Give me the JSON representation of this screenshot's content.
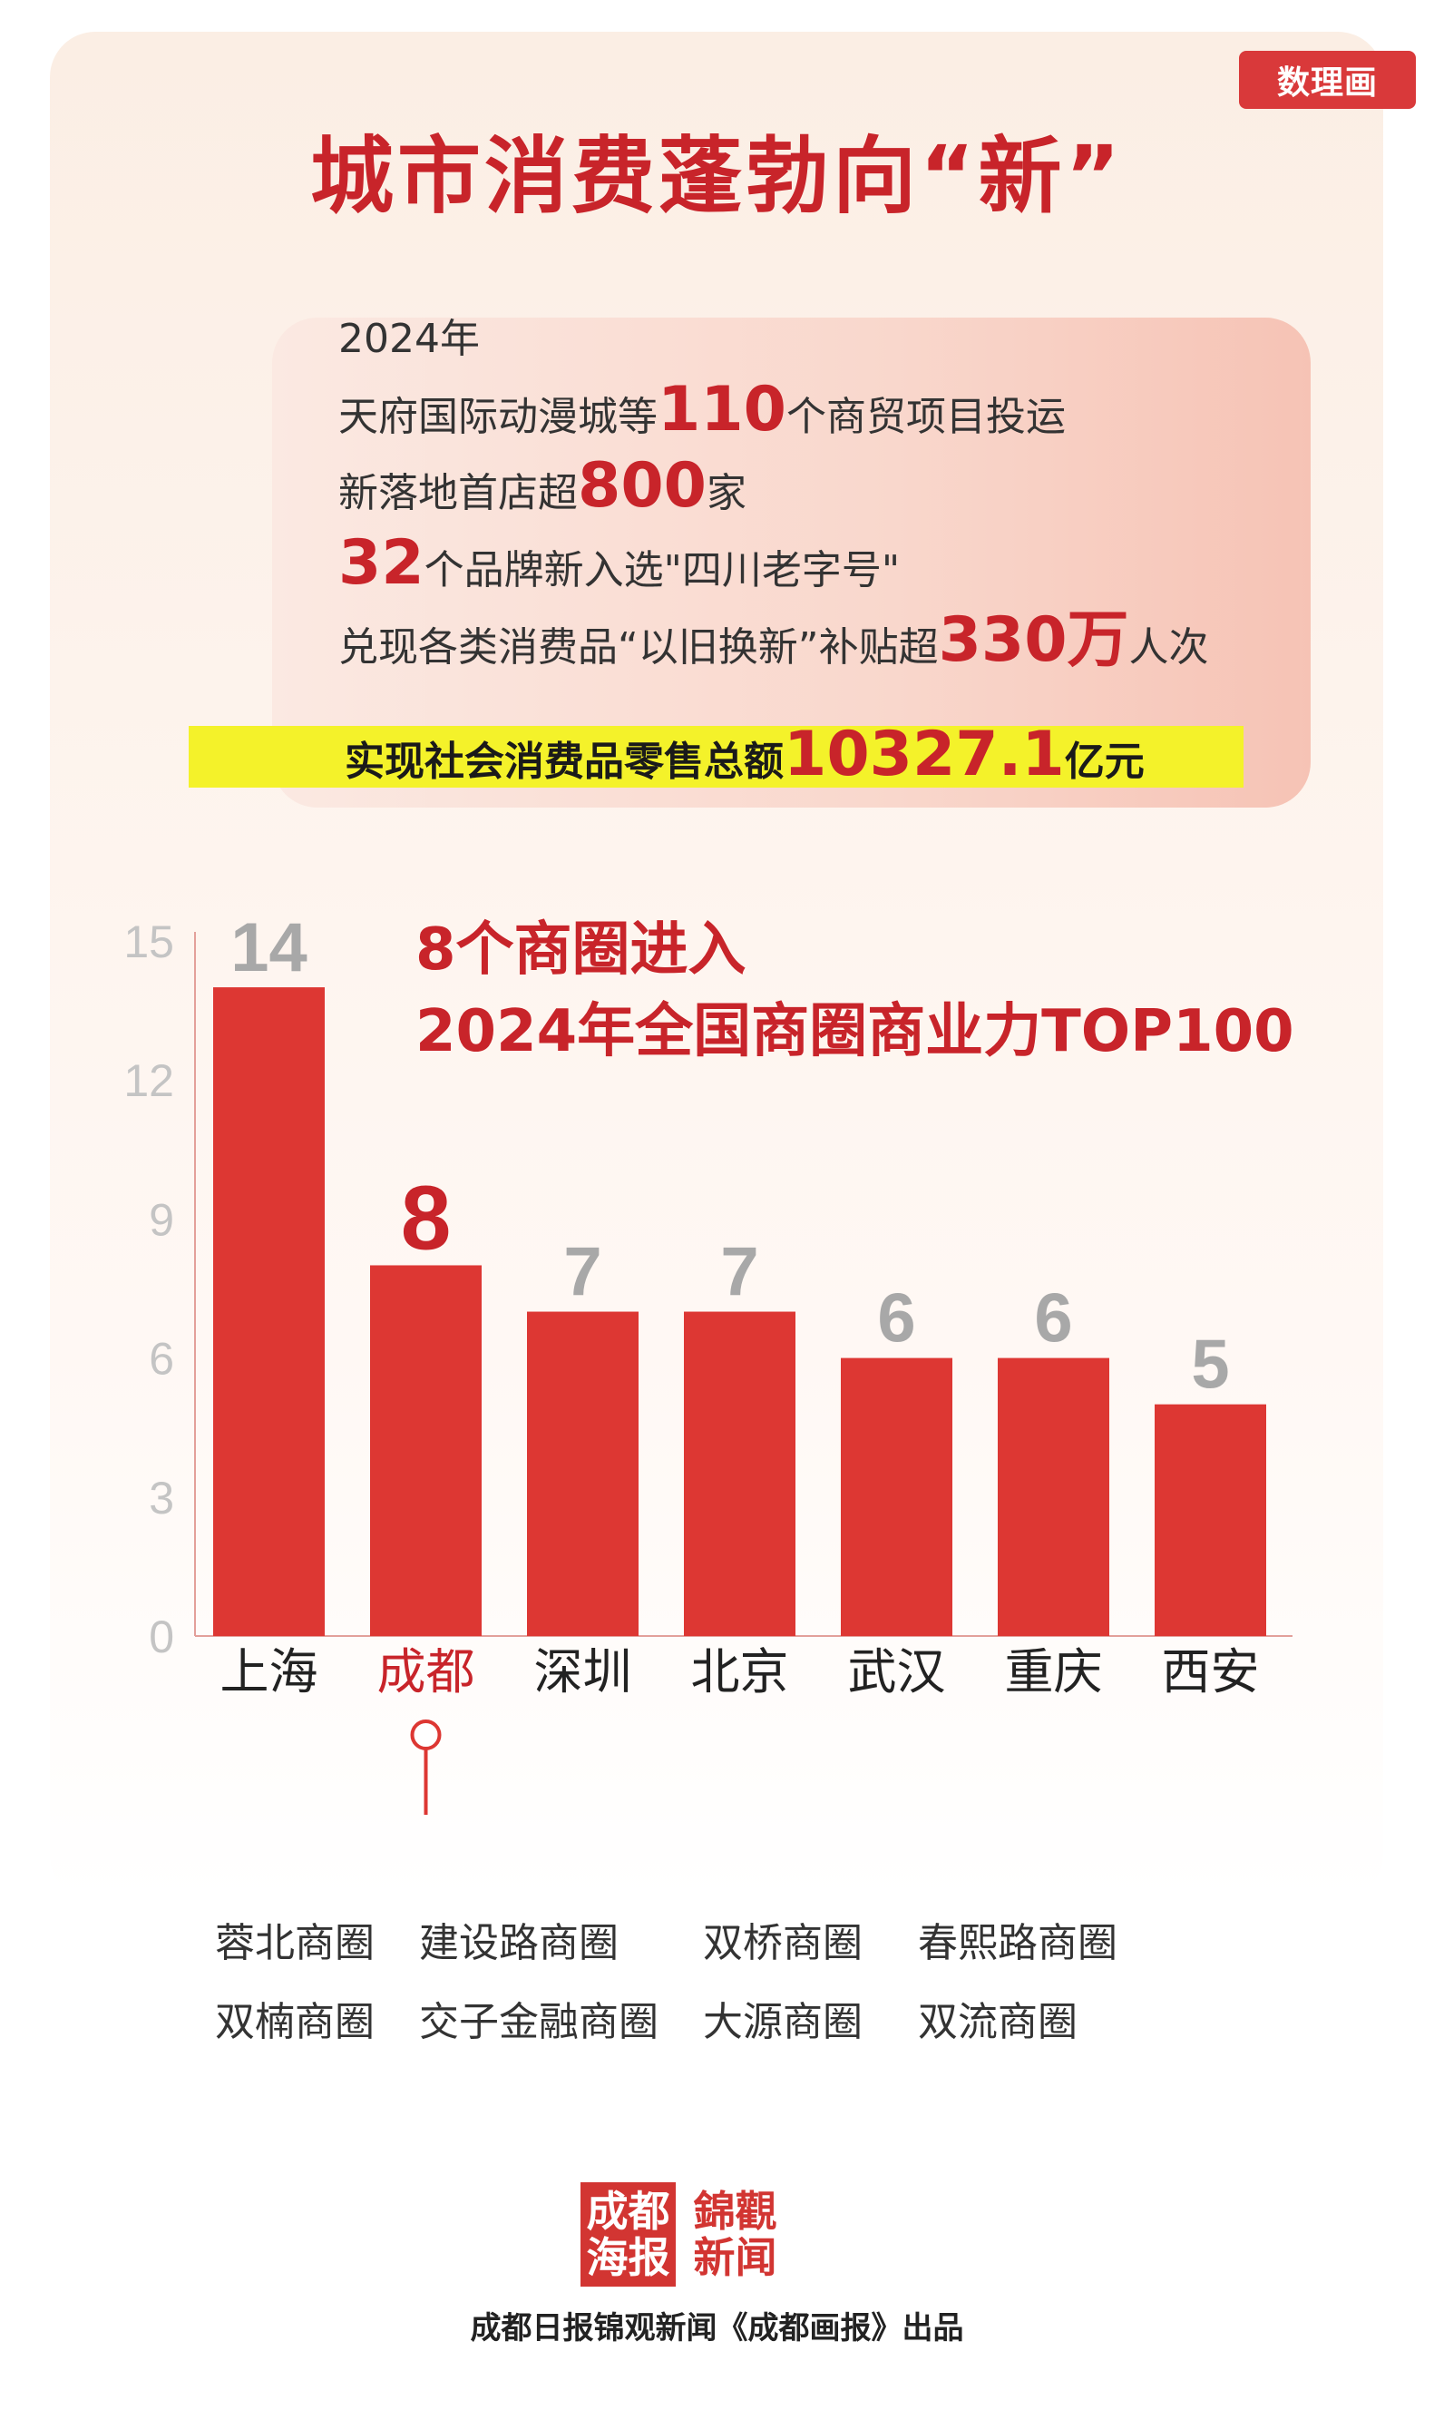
{
  "badge": "数理画",
  "title": "城市消费蓬勃向“新”",
  "stats": {
    "year": "2024年",
    "line1_pre": "天府国际动漫城等",
    "line1_num": "110",
    "line1_post": "个商贸项目投运",
    "line2_pre": "新落地首店超",
    "line2_num": "800",
    "line2_post": "家",
    "line3_num": "32",
    "line3_post": "个品牌新入选\"四川老字号\"",
    "line4_pre": "兑现各类消费品“以旧换新”补贴超",
    "line4_num": "330万",
    "line4_post": "人次",
    "total_pre": "实现社会消费品零售总额",
    "total_num": "10327.1",
    "total_post": "亿元"
  },
  "chart_subtitle": [
    "8个商圈进入",
    "2024年全国商圈商业力TOP100"
  ],
  "chart_data": {
    "type": "bar",
    "categories": [
      "上海",
      "成都",
      "深圳",
      "北京",
      "武汉",
      "重庆",
      "西安"
    ],
    "values": [
      14,
      8,
      7,
      7,
      6,
      6,
      5
    ],
    "highlight": "成都",
    "y_ticks": [
      "0",
      "3",
      "6",
      "9",
      "12",
      "15"
    ],
    "ylim": [
      0,
      15
    ],
    "bar_color": "#dd3733",
    "label_color_default": "#a8a8a8",
    "label_color_highlight": "#c8242a",
    "grid": false
  },
  "districts": [
    [
      "蓉北商圈",
      "建设路商圈",
      "双桥商圈",
      "春熙路商圈"
    ],
    [
      "双楠商圈",
      "交子金融商圈",
      "大源商圈",
      "双流商圈"
    ]
  ],
  "logos": {
    "a_top": "成都",
    "a_bottom": "海报",
    "b_top": "錦觀",
    "b_bottom": "新闻"
  },
  "credit": "成都日报锦观新闻《成都画报》出品"
}
